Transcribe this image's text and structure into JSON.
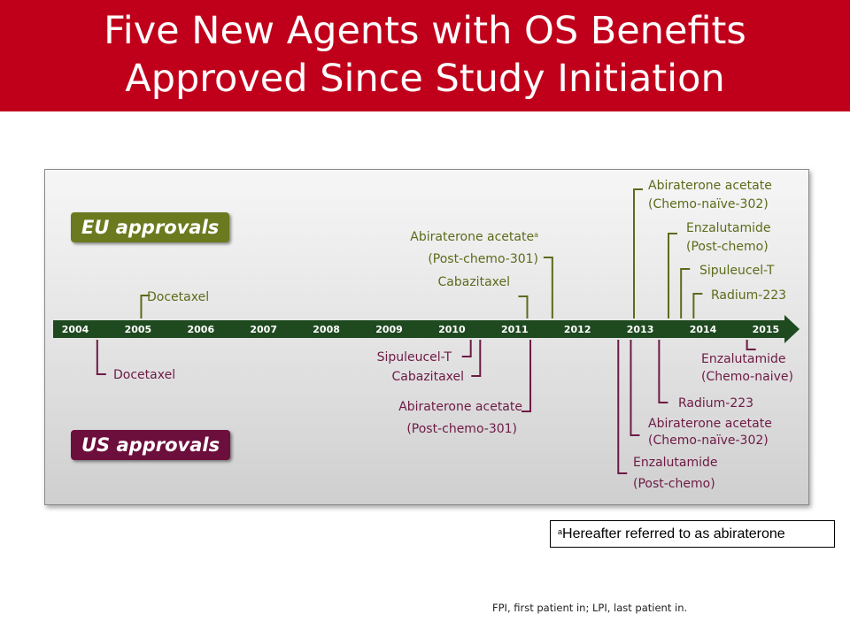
{
  "title": [
    "Five New Agents with OS Benefits",
    "Approved Since Study Initiation"
  ],
  "badges": {
    "eu": "EU approvals",
    "us": "US approvals"
  },
  "colors": {
    "header": "#c0001a",
    "eu": "#6b7a1f",
    "us": "#6d0f3c",
    "eu_text": "#5b6b1a",
    "us_text": "#6d1a45",
    "arrow": "#1f4a20"
  },
  "chart_data": {
    "type": "timeline",
    "years": [
      "2004",
      "2005",
      "2006",
      "2007",
      "2008",
      "2009",
      "2010",
      "2011",
      "2012",
      "2013",
      "2014",
      "2015"
    ],
    "eu_events": [
      {
        "lines": [
          "Docetaxel"
        ],
        "date": 2005.05
      },
      {
        "lines": [
          "Cabazitaxel"
        ],
        "date": 2011.2
      },
      {
        "lines": [
          "Abiraterone acetate",
          "(Post-chemo-301)"
        ],
        "sup": "a",
        "date": 2011.6
      },
      {
        "lines": [
          "Abiraterone acetate",
          "(Chemo-naïve-302)"
        ],
        "date": 2012.9
      },
      {
        "lines": [
          "Enzalutamide",
          "(Post-chemo)"
        ],
        "date": 2013.45
      },
      {
        "lines": [
          "Sipuleucel-T"
        ],
        "date": 2013.65
      },
      {
        "lines": [
          "Radium-223"
        ],
        "date": 2013.85
      }
    ],
    "us_events": [
      {
        "lines": [
          "Docetaxel"
        ],
        "date": 2004.35
      },
      {
        "lines": [
          "Sipuleucel-T"
        ],
        "date": 2010.3
      },
      {
        "lines": [
          "Cabazitaxel"
        ],
        "date": 2010.45
      },
      {
        "lines": [
          "Abiraterone acetate",
          "(Post-chemo-301)"
        ],
        "date": 2011.25
      },
      {
        "lines": [
          "Enzalutamide",
          "(Post-chemo)"
        ],
        "date": 2012.65
      },
      {
        "lines": [
          "Abiraterone acetate",
          "(Chemo-naïve-302)"
        ],
        "date": 2012.85
      },
      {
        "lines": [
          "Radium-223"
        ],
        "date": 2013.3
      },
      {
        "lines": [
          "Enzalutamide",
          "(Chemo-naive)"
        ],
        "date": 2014.7
      }
    ]
  },
  "note": {
    "sup": "a",
    "text": "Hereafter referred to as abiraterone"
  },
  "footnote": "FPI, first patient in; LPI, last patient in."
}
